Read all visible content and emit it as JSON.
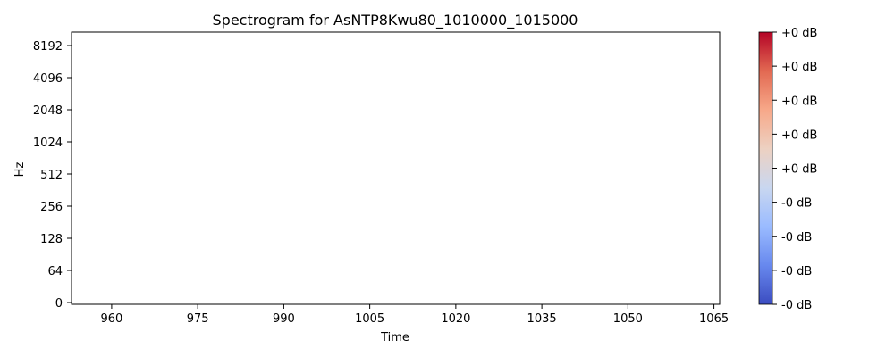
{
  "chart_data": {
    "type": "heatmap",
    "title": "Spectrogram for AsNTP8Kwu80_1010000_1015000",
    "xlabel": "Time",
    "ylabel": "Hz",
    "xlim": [
      953,
      1066
    ],
    "x_ticks": [
      960,
      975,
      990,
      1005,
      1020,
      1035,
      1050,
      1065
    ],
    "y_scale": "log2",
    "y_ticks": [
      "0",
      "64",
      "128",
      "256",
      "512",
      "1024",
      "2048",
      "4096",
      "8192"
    ],
    "values": [],
    "colormap": "coolwarm",
    "colormap_stops": [
      "#3b4cc0",
      "#6788ee",
      "#9abbff",
      "#c9d7f0",
      "#edd1c2",
      "#f7a889",
      "#e26952",
      "#b40426"
    ],
    "colorbar_ticks": [
      "+0 dB",
      "+0 dB",
      "+0 dB",
      "+0 dB",
      "+0 dB",
      "-0 dB",
      "-0 dB",
      "-0 dB",
      "-0 dB"
    ],
    "grid": false,
    "legend": "colorbar-right"
  }
}
